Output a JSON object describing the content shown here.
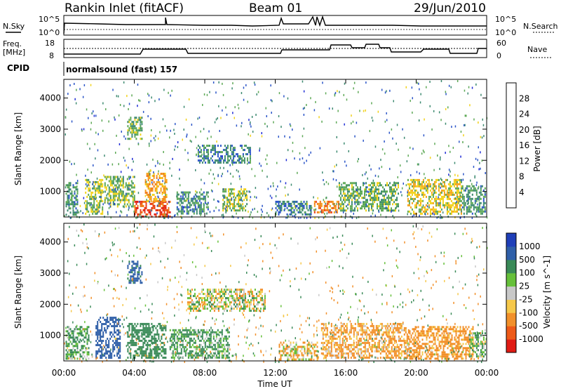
{
  "header": {
    "station": "Rankin Inlet (fitACF)",
    "beam": "Beam 01",
    "date": "29/Jun/2010"
  },
  "top_panel": {
    "left_label": "N.Sky",
    "left_ticks": [
      "10^5",
      "10^0"
    ],
    "right_label": "N.Search",
    "right_ticks": [
      "10^5",
      "10^0"
    ]
  },
  "freq_panel": {
    "left_label_1": "Freq.",
    "left_label_2": "[MHz]",
    "left_ticks": [
      "18",
      "8"
    ],
    "right_label": "Nave",
    "right_ticks": [
      "60",
      "0"
    ]
  },
  "cpid": {
    "label": "CPID",
    "value": "normalsound (fast) 157"
  },
  "colors": {
    "power_scale": [
      "#1f2bd6",
      "#2b55c8",
      "#3d8a70",
      "#5ea956",
      "#f2d21a",
      "#f6a21a",
      "#f07a18",
      "#ea3b18",
      "#e01b14"
    ],
    "velocity_scale": [
      "#e01b14",
      "#ee5a18",
      "#f2902a",
      "#f6c84a",
      "#c8c8c8",
      "#66c03a",
      "#3a8a58",
      "#2f5fa8",
      "#1f3fb8"
    ]
  },
  "chart_data": [
    {
      "type": "heatmap",
      "name": "power",
      "ylabel": "Slant Range [km]",
      "yticks": [
        "1000",
        "2000",
        "3000",
        "4000"
      ],
      "ylim": [
        180,
        4600
      ],
      "xlim": [
        0,
        24
      ],
      "colorbar_label": "Power [dB]",
      "colorbar_ticks": [
        "4",
        "8",
        "12",
        "16",
        "20",
        "24",
        "28"
      ],
      "colorbar_range": [
        0,
        32
      ],
      "patches": [
        {
          "t0": 0.1,
          "t1": 0.8,
          "r0": 250,
          "r1": 1300,
          "v": 10
        },
        {
          "t0": 1.2,
          "t1": 2.2,
          "r0": 300,
          "r1": 1400,
          "v": 14
        },
        {
          "t0": 2.3,
          "t1": 4.0,
          "r0": 500,
          "r1": 1500,
          "v": 13
        },
        {
          "t0": 3.6,
          "t1": 4.4,
          "r0": 2700,
          "r1": 3400,
          "v": 12
        },
        {
          "t0": 4.0,
          "t1": 6.0,
          "r0": 200,
          "r1": 700,
          "v": 26
        },
        {
          "t0": 4.6,
          "t1": 5.8,
          "r0": 700,
          "r1": 1600,
          "v": 20
        },
        {
          "t0": 6.4,
          "t1": 8.2,
          "r0": 300,
          "r1": 1000,
          "v": 9
        },
        {
          "t0": 7.6,
          "t1": 10.6,
          "r0": 1900,
          "r1": 2500,
          "v": 8
        },
        {
          "t0": 9.0,
          "t1": 10.4,
          "r0": 400,
          "r1": 1100,
          "v": 14
        },
        {
          "t0": 12.0,
          "t1": 14.0,
          "r0": 250,
          "r1": 700,
          "v": 8
        },
        {
          "t0": 14.2,
          "t1": 15.6,
          "r0": 300,
          "r1": 700,
          "v": 22
        },
        {
          "t0": 15.6,
          "t1": 19.0,
          "r0": 400,
          "r1": 1300,
          "v": 12
        },
        {
          "t0": 19.5,
          "t1": 22.6,
          "r0": 250,
          "r1": 1400,
          "v": 16
        },
        {
          "t0": 22.6,
          "t1": 23.9,
          "r0": 300,
          "r1": 1200,
          "v": 10
        }
      ]
    },
    {
      "type": "heatmap",
      "name": "velocity",
      "ylabel": "Slant Range [km]",
      "yticks": [
        "1000",
        "2000",
        "3000",
        "4000"
      ],
      "ylim": [
        180,
        4600
      ],
      "xlim": [
        0,
        24
      ],
      "xlabel": "Time UT",
      "xticks": [
        "00:00",
        "04:00",
        "08:00",
        "12:00",
        "16:00",
        "20:00",
        "00:00"
      ],
      "colorbar_label": "Velocity [m s^-1]",
      "colorbar_ticks": [
        "1000",
        "500",
        "100",
        "25",
        "-25",
        "-100",
        "-500",
        "-1000"
      ],
      "patches": [
        {
          "t0": 0.1,
          "t1": 1.4,
          "r0": 250,
          "r1": 1300,
          "v": 150
        },
        {
          "t0": 1.8,
          "t1": 3.2,
          "r0": 300,
          "r1": 1600,
          "v": 700
        },
        {
          "t0": 3.6,
          "t1": 5.8,
          "r0": 250,
          "r1": 1400,
          "v": 300
        },
        {
          "t0": 3.6,
          "t1": 4.4,
          "r0": 2700,
          "r1": 3400,
          "v": 600
        },
        {
          "t0": 6.0,
          "t1": 9.4,
          "r0": 300,
          "r1": 1200,
          "v": 150
        },
        {
          "t0": 7.0,
          "t1": 11.4,
          "r0": 1800,
          "r1": 2500,
          "v": 0
        },
        {
          "t0": 12.2,
          "t1": 14.4,
          "r0": 200,
          "r1": 800,
          "v": -80
        },
        {
          "t0": 14.6,
          "t1": 19.6,
          "r0": 300,
          "r1": 1400,
          "v": -150
        },
        {
          "t0": 19.6,
          "t1": 23.2,
          "r0": 250,
          "r1": 1300,
          "v": -200
        },
        {
          "t0": 23.0,
          "t1": 23.9,
          "r0": 300,
          "r1": 1100,
          "v": 80
        }
      ]
    }
  ]
}
